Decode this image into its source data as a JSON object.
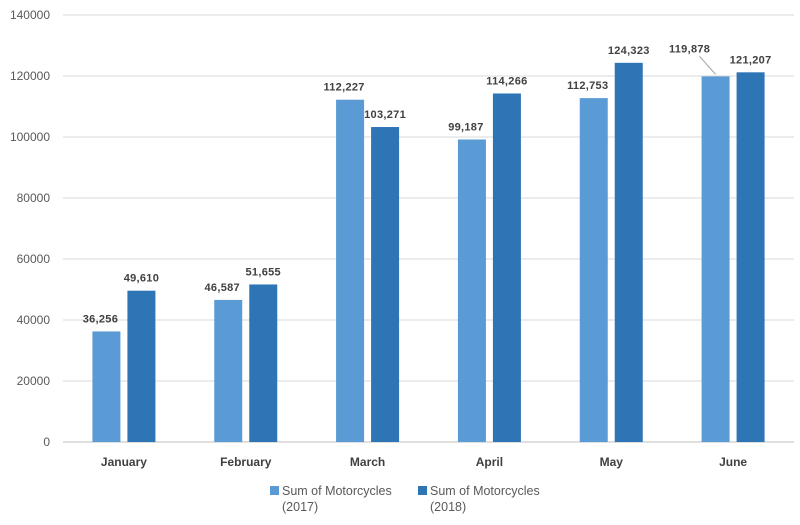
{
  "chart_data": {
    "type": "bar",
    "title": "",
    "xlabel": "",
    "ylabel": "",
    "ylim": [
      0,
      140000
    ],
    "yticks": [
      0,
      20000,
      40000,
      60000,
      80000,
      100000,
      120000,
      140000
    ],
    "grid": true,
    "legend_position": "bottom",
    "categories": [
      "January",
      "February",
      "March",
      "April",
      "May",
      "June"
    ],
    "series": [
      {
        "name": "Sum of Motorcycles (2017)",
        "legend_lines": [
          "Sum of Motorcycles",
          "(2017)"
        ],
        "color": "#5B9BD5",
        "values": [
          36256,
          46587,
          112227,
          99187,
          112753,
          119878
        ],
        "labels": [
          "36,256",
          "46,587",
          "112,227",
          "99,187",
          "112,753",
          "119,878"
        ]
      },
      {
        "name": "Sum of Motorcycles (2018)",
        "legend_lines": [
          "Sum of Motorcycles",
          "(2018)"
        ],
        "color": "#2E75B6",
        "values": [
          49610,
          51655,
          103271,
          114266,
          124323,
          121207
        ],
        "labels": [
          "49,610",
          "51,655",
          "103,271",
          "114,266",
          "124,323",
          "121,207"
        ]
      }
    ]
  }
}
